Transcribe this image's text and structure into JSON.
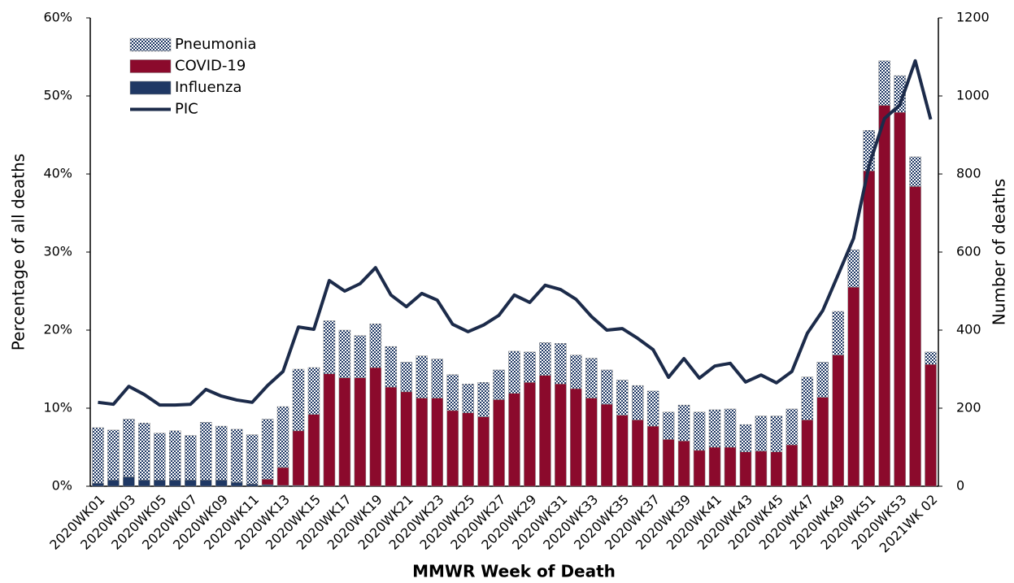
{
  "chart_data": {
    "type": "bar",
    "stacked": true,
    "x_title": "MMWR Week of Death",
    "y_title": "Percentage of all deaths",
    "y2_title": "Number of deaths",
    "categories": [
      "2020WK01",
      null,
      "2020WK03",
      null,
      "2020WK05",
      null,
      "2020WK07",
      null,
      "2020WK09",
      null,
      "2020WK11",
      null,
      "2020WK13",
      null,
      "2020WK15",
      null,
      "2020WK17",
      null,
      "2020WK19",
      null,
      "2020WK21",
      null,
      "2020WK23",
      null,
      "2020WK25",
      null,
      "2020WK27",
      null,
      "2020WK29",
      null,
      "2020WK31",
      null,
      "2020WK33",
      null,
      "2020WK35",
      null,
      "2020WK37",
      null,
      "2020WK39",
      null,
      "2020WK41",
      null,
      "2020WK43",
      null,
      "2020WK45",
      null,
      "2020WK47",
      null,
      "2020WK49",
      null,
      "2020WK51",
      null,
      "2020WK53",
      null,
      "2021WK 02"
    ],
    "ylim": [
      0,
      60
    ],
    "yticks": [
      {
        "value": 0,
        "label": "0%"
      },
      {
        "value": 10,
        "label": "10%"
      },
      {
        "value": 20,
        "label": "20%"
      },
      {
        "value": 30,
        "label": "30%"
      },
      {
        "value": 40,
        "label": "40%"
      },
      {
        "value": 50,
        "label": "50%"
      },
      {
        "value": 60,
        "label": "60%"
      }
    ],
    "y2lim": [
      0,
      1200
    ],
    "y2ticks": [
      0,
      200,
      400,
      600,
      800,
      1000,
      1200
    ],
    "legend": "top-left",
    "series": [
      {
        "name": "Pneumonia",
        "color": "#1f3864",
        "pattern": "checker",
        "values": [
          7.1,
          6.4,
          7.4,
          7.3,
          6.0,
          6.3,
          5.7,
          7.4,
          6.9,
          6.8,
          6.3,
          7.7,
          7.8,
          7.9,
          6.0,
          6.8,
          6.1,
          5.4,
          5.6,
          5.2,
          3.8,
          5.4,
          5.0,
          4.6,
          3.7,
          4.4,
          3.8,
          5.4,
          3.9,
          4.2,
          5.2,
          4.3,
          5.1,
          4.4,
          4.5,
          4.4,
          4.5,
          3.5,
          4.6,
          4.9,
          4.8,
          4.9,
          3.5,
          4.5,
          4.6,
          4.6,
          5.5,
          4.5,
          5.6,
          4.8,
          5.2,
          5.7,
          4.7,
          3.8,
          1.6
        ]
      },
      {
        "name": "COVID-19",
        "color": "#8b0a2c",
        "values": [
          0,
          0,
          0,
          0,
          0,
          0,
          0,
          0,
          0,
          0,
          0,
          0.7,
          2.3,
          7.0,
          9.2,
          14.4,
          13.9,
          13.9,
          15.2,
          12.7,
          12.1,
          11.3,
          11.3,
          9.7,
          9.4,
          8.9,
          11.1,
          11.9,
          13.3,
          14.2,
          13.1,
          12.5,
          11.3,
          10.5,
          9.1,
          8.5,
          7.7,
          6.0,
          5.8,
          4.6,
          5.0,
          5.0,
          4.4,
          4.5,
          4.4,
          5.3,
          8.5,
          11.4,
          16.8,
          25.5,
          40.4,
          48.8,
          47.9,
          38.4,
          15.6
        ]
      },
      {
        "name": "Influenza",
        "color": "#1f3864",
        "values": [
          0.4,
          0.8,
          1.2,
          0.8,
          0.8,
          0.8,
          0.8,
          0.8,
          0.8,
          0.5,
          0.3,
          0.2,
          0.1,
          0.1,
          0,
          0,
          0,
          0,
          0,
          0,
          0,
          0,
          0,
          0,
          0,
          0,
          0,
          0,
          0,
          0,
          0,
          0,
          0,
          0,
          0,
          0,
          0,
          0,
          0,
          0,
          0,
          0,
          0,
          0,
          0,
          0,
          0,
          0,
          0,
          0,
          0,
          0,
          0,
          0,
          0
        ]
      },
      {
        "name": "PIC",
        "color": "#1c2b4a",
        "type": "line",
        "axis": "y2",
        "values": [
          215,
          210,
          256,
          235,
          208,
          208,
          210,
          248,
          231,
          221,
          215,
          258,
          294,
          408,
          402,
          527,
          500,
          519,
          560,
          490,
          460,
          494,
          477,
          415,
          396,
          413,
          438,
          490,
          471,
          515,
          504,
          479,
          435,
          400,
          404,
          379,
          350,
          279,
          327,
          277,
          308,
          315,
          267,
          285,
          265,
          294,
          392,
          450,
          542,
          635,
          821,
          942,
          977,
          1090,
          940
        ]
      }
    ]
  }
}
